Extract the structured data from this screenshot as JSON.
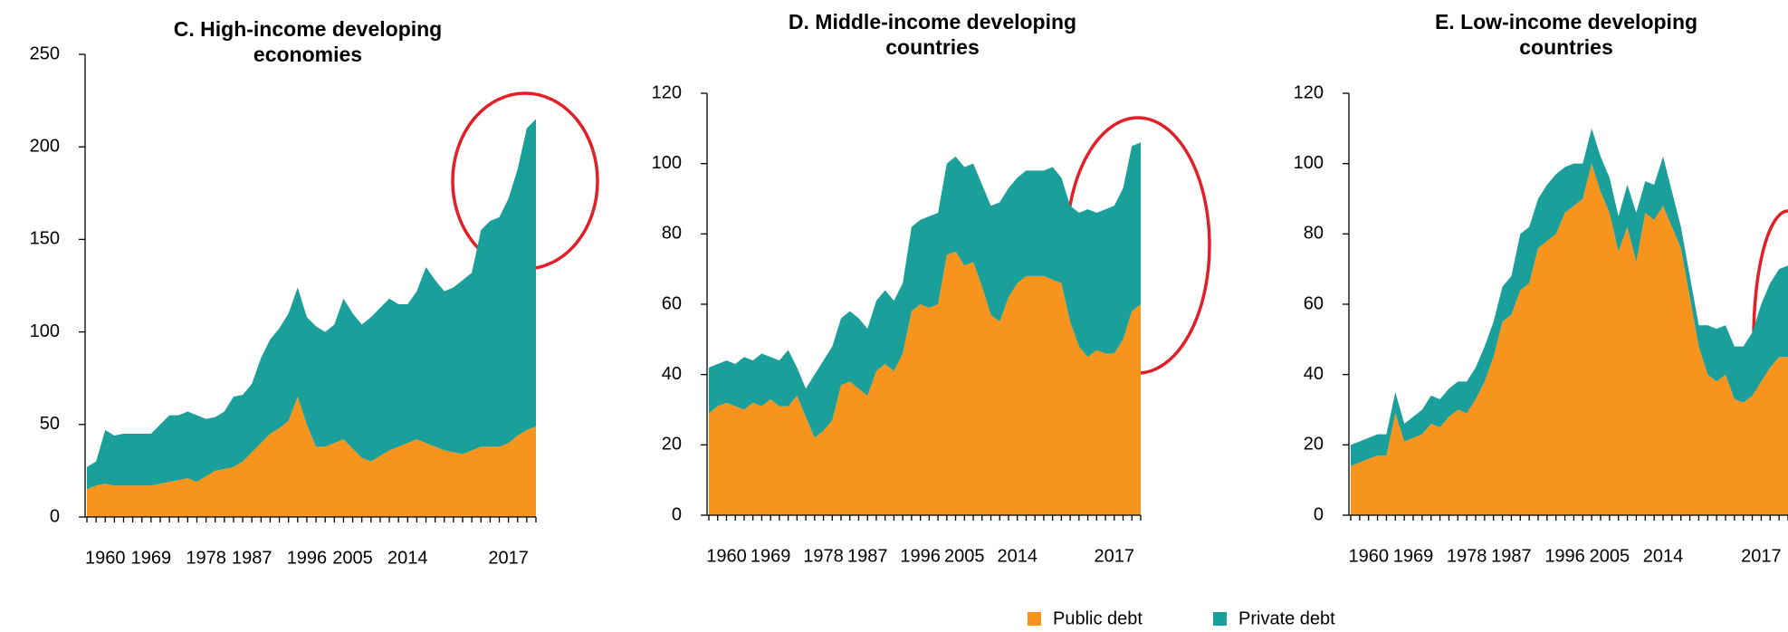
{
  "chart_data": [
    {
      "type": "area",
      "stacked": true,
      "title": "C. High-income developing economies",
      "categories": [
        null,
        null,
        "1960",
        null,
        null,
        null,
        null,
        "1969",
        null,
        null,
        null,
        null,
        null,
        "1978",
        null,
        null,
        null,
        null,
        "1987",
        null,
        null,
        null,
        null,
        null,
        "1996",
        null,
        null,
        null,
        null,
        "2005",
        null,
        null,
        null,
        null,
        null,
        "2014",
        null,
        null,
        null,
        null,
        null,
        null,
        null,
        null,
        null,
        null,
        "2017",
        null,
        null,
        null
      ],
      "series": [
        {
          "name": "Public debt",
          "color": "#f7941d",
          "values": [
            15,
            17,
            18,
            17,
            17,
            17,
            17,
            17,
            18,
            19,
            20,
            21,
            19,
            22,
            25,
            26,
            27,
            30,
            35,
            40,
            45,
            48,
            52,
            65,
            50,
            38,
            38,
            40,
            42,
            37,
            32,
            30,
            33,
            36,
            38,
            40,
            42,
            40,
            38,
            36,
            35,
            34,
            36,
            38,
            38,
            38,
            40,
            44,
            47,
            49
          ]
        },
        {
          "name": "Private debt",
          "color": "#1a9f9b",
          "values": [
            12,
            13,
            29,
            27,
            28,
            28,
            28,
            28,
            32,
            36,
            35,
            36,
            36,
            31,
            29,
            31,
            38,
            36,
            37,
            46,
            51,
            54,
            58,
            59,
            58,
            65,
            62,
            64,
            76,
            73,
            72,
            78,
            80,
            82,
            77,
            75,
            80,
            95,
            90,
            86,
            89,
            94,
            96,
            117,
            122,
            124,
            132,
            144,
            163,
            166
          ]
        }
      ],
      "ylim": [
        0,
        250
      ],
      "yticks": [
        0,
        50,
        100,
        150,
        200,
        250
      ]
    },
    {
      "type": "area",
      "stacked": true,
      "title": "D. Middle-income developing countries",
      "categories": [
        null,
        null,
        "1960",
        null,
        null,
        null,
        null,
        "1969",
        null,
        null,
        null,
        null,
        null,
        "1978",
        null,
        null,
        null,
        null,
        "1987",
        null,
        null,
        null,
        null,
        null,
        "1996",
        null,
        null,
        null,
        null,
        "2005",
        null,
        null,
        null,
        null,
        null,
        "2014",
        null,
        null,
        null,
        null,
        null,
        null,
        null,
        null,
        null,
        null,
        "2017",
        null,
        null,
        null
      ],
      "series": [
        {
          "name": "Public debt",
          "color": "#f7941d",
          "values": [
            29,
            31,
            32,
            31,
            30,
            32,
            31,
            33,
            31,
            31,
            34,
            28,
            22,
            24,
            27,
            37,
            38,
            36,
            34,
            41,
            43,
            41,
            46,
            58,
            60,
            59,
            60,
            74,
            75,
            71,
            72,
            65,
            57,
            55,
            62,
            66,
            68,
            68,
            68,
            67,
            66,
            55,
            48,
            45,
            47,
            46,
            46,
            50,
            58,
            60
          ]
        },
        {
          "name": "Private debt",
          "color": "#1a9f9b",
          "values": [
            13,
            12,
            12,
            12,
            15,
            12,
            15,
            12,
            13,
            16,
            8,
            8,
            18,
            20,
            21,
            19,
            20,
            20,
            19,
            20,
            21,
            20,
            20,
            24,
            24,
            26,
            26,
            26,
            27,
            28,
            28,
            29,
            31,
            34,
            31,
            30,
            30,
            30,
            30,
            32,
            30,
            33,
            38,
            42,
            39,
            41,
            42,
            43,
            47,
            46
          ]
        }
      ],
      "ylim": [
        0,
        120
      ],
      "yticks": [
        0,
        20,
        40,
        60,
        80,
        100,
        120
      ]
    },
    {
      "type": "area",
      "stacked": true,
      "title": "E. Low-income developing countries",
      "categories": [
        null,
        null,
        "1960",
        null,
        null,
        null,
        null,
        "1969",
        null,
        null,
        null,
        null,
        null,
        "1978",
        null,
        null,
        null,
        null,
        "1987",
        null,
        null,
        null,
        null,
        null,
        "1996",
        null,
        null,
        null,
        null,
        "2005",
        null,
        null,
        null,
        null,
        null,
        "2014",
        null,
        null,
        null,
        null,
        null,
        null,
        null,
        null,
        null,
        null,
        "2017",
        null,
        null,
        null
      ],
      "series": [
        {
          "name": "Public debt",
          "color": "#f7941d",
          "values": [
            14,
            15,
            16,
            17,
            17,
            29,
            21,
            22,
            23,
            26,
            25,
            28,
            30,
            29,
            33,
            38,
            45,
            55,
            57,
            64,
            66,
            76,
            78,
            80,
            86,
            88,
            90,
            100,
            92,
            86,
            75,
            82,
            72,
            86,
            84,
            88,
            82,
            76,
            62,
            48,
            40,
            38,
            40,
            33,
            32,
            34,
            38,
            42,
            45,
            45
          ]
        },
        {
          "name": "Private debt",
          "color": "#1a9f9b",
          "values": [
            6,
            6,
            6,
            6,
            6,
            6,
            5,
            6,
            7,
            8,
            8,
            8,
            8,
            9,
            9,
            10,
            10,
            10,
            11,
            16,
            16,
            14,
            16,
            17,
            13,
            12,
            10,
            10,
            10,
            10,
            10,
            12,
            14,
            9,
            10,
            14,
            10,
            6,
            6,
            6,
            14,
            15,
            14,
            15,
            16,
            18,
            22,
            24,
            25,
            26
          ]
        }
      ],
      "ylim": [
        0,
        120
      ],
      "yticks": [
        0,
        20,
        40,
        60,
        80,
        100,
        120
      ]
    }
  ]
}
